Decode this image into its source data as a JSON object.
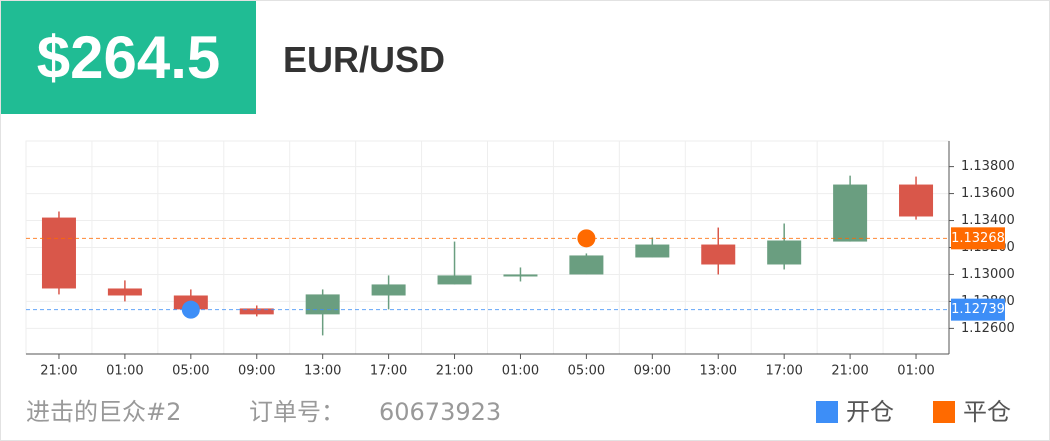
{
  "badge": "$264.5",
  "symbol": "EUR/USD",
  "footer": {
    "account": "进击的巨众#2",
    "order_label": "订单号：",
    "order_number": "60673923"
  },
  "chart_data": {
    "type": "candlestick",
    "categories": [
      "21:00",
      "01:00",
      "05:00",
      "09:00",
      "13:00",
      "17:00",
      "21:00",
      "01:00",
      "05:00",
      "09:00",
      "13:00",
      "17:00",
      "21:00",
      "01:00"
    ],
    "open": [
      1.13422,
      1.12896,
      1.12844,
      1.12748,
      1.12704,
      1.12844,
      1.12926,
      1.12985,
      1.13,
      1.13126,
      1.13222,
      1.13074,
      1.13244,
      1.13667
    ],
    "high": [
      1.13467,
      1.12956,
      1.12889,
      1.1277,
      1.12889,
      1.12993,
      1.13244,
      1.13052,
      1.13156,
      1.13274,
      1.13348,
      1.13378,
      1.13733,
      1.13726
    ],
    "low": [
      1.12852,
      1.128,
      1.12726,
      1.12689,
      1.12548,
      1.12741,
      1.12926,
      1.12948,
      1.13,
      1.13126,
      1.13,
      1.13037,
      1.13244,
      1.13407
    ],
    "close": [
      1.12896,
      1.12844,
      1.12741,
      1.12704,
      1.12852,
      1.12926,
      1.12993,
      1.13,
      1.13141,
      1.13222,
      1.13074,
      1.13252,
      1.13667,
      1.1343
    ],
    "up_color": "#6a9e80",
    "down_color": "#d9574a",
    "ylim": [
      1.1241,
      1.1399
    ],
    "yticks": [
      {
        "value": 1.126,
        "label": "1.12600"
      },
      {
        "value": 1.128,
        "label": "1.12800"
      },
      {
        "value": 1.13,
        "label": "1.13000"
      },
      {
        "value": 1.132,
        "label": "1.13200"
      },
      {
        "value": 1.134,
        "label": "1.13400"
      },
      {
        "value": 1.136,
        "label": "1.13600"
      },
      {
        "value": 1.138,
        "label": "1.13800"
      }
    ],
    "grid": true,
    "markers": [
      {
        "name": "开仓",
        "color": "#3d8ef7",
        "index": 2,
        "value": 1.12739
      },
      {
        "name": "平仓",
        "color": "#ff6a00",
        "index": 8,
        "value": 1.13268
      }
    ]
  }
}
